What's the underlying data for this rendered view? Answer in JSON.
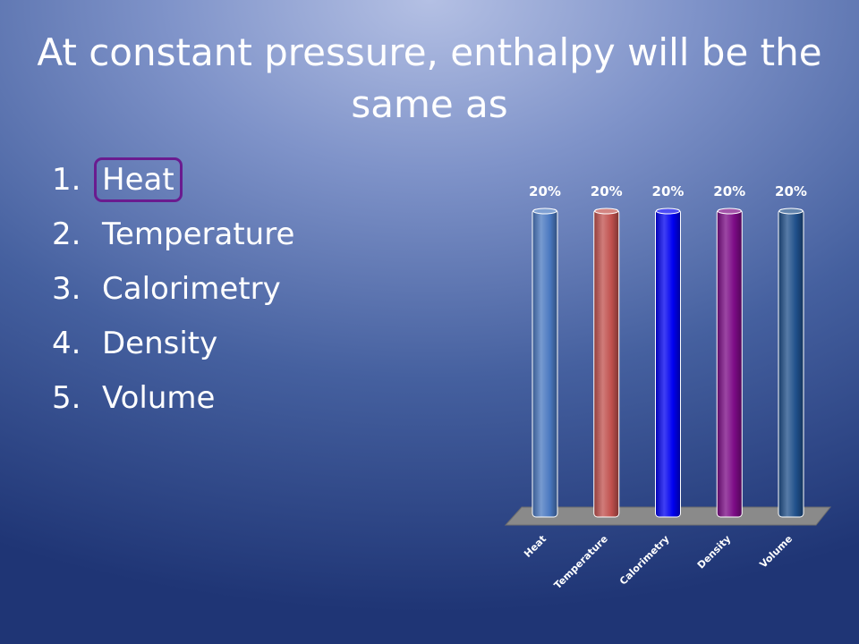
{
  "slide": {
    "title": "At constant pressure, enthalpy will be the same as",
    "choices": [
      {
        "number": "1.",
        "label": "Heat",
        "selected": true
      },
      {
        "number": "2.",
        "label": "Temperature",
        "selected": false
      },
      {
        "number": "3.",
        "label": "Calorimetry",
        "selected": false
      },
      {
        "number": "4.",
        "label": "Density",
        "selected": false
      },
      {
        "number": "5.",
        "label": "Volume",
        "selected": false
      }
    ],
    "selection_color": "#6a1b8f"
  },
  "chart_data": {
    "type": "bar",
    "categories": [
      "Heat",
      "Temperature",
      "Calorimetry",
      "Density",
      "Volume"
    ],
    "values": [
      20,
      20,
      20,
      20,
      20
    ],
    "value_labels": [
      "20%",
      "20%",
      "20%",
      "20%",
      "20%"
    ],
    "colors": [
      "#4a78c0",
      "#c0504d",
      "#0000f0",
      "#7b0a85",
      "#1f4f8a"
    ],
    "floor_color": "#8a8a8a",
    "ylim": [
      0,
      20
    ],
    "grid": false,
    "legend": "none"
  }
}
